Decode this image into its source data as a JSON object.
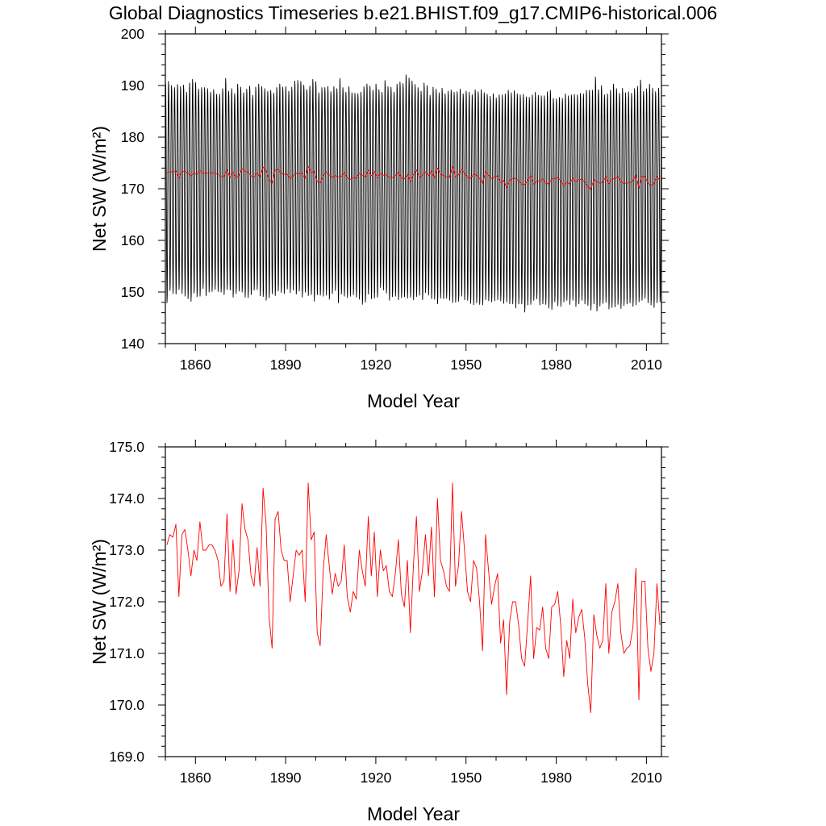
{
  "figure_title": "Global Diagnostics Timeseries b.e21.BHIST.f09_g17.CMIP6-historical.006",
  "chart_data": [
    {
      "type": "line",
      "xlabel": "Model Year",
      "ylabel": "Net SW (W/m²)",
      "xlim": [
        1850,
        2015
      ],
      "ylim": [
        140,
        200
      ],
      "xticks": [
        1860,
        1890,
        1920,
        1950,
        1980,
        2010
      ],
      "yticks": [
        140,
        150,
        160,
        170,
        180,
        190,
        200
      ],
      "ytick_labels": [
        "140",
        "150",
        "160",
        "170",
        "180",
        "190",
        "200"
      ],
      "grid": false,
      "series": [
        {
          "kind": "monthly",
          "color": "#000000",
          "x_start": 1850,
          "y_mean_source": "annual",
          "seasonal_amplitude": 20.5,
          "annual_max": [
            190.7,
            191.0,
            190.2,
            189.8,
            190.4,
            190.0,
            190.3,
            188.9,
            190.7,
            191.4,
            190.8,
            189.5,
            189.8,
            189.8,
            189.6,
            188.9,
            189.4,
            188.5,
            188.5,
            189.6,
            191.6,
            189.1,
            189.6,
            188.6,
            190.5,
            189.9,
            188.8,
            189.5,
            190.1,
            188.3,
            189.9,
            190.5,
            190.0,
            189.6,
            189.1,
            189.3,
            188.7,
            189.8,
            190.5,
            189.9,
            190.0,
            189.1,
            189.9,
            191.1,
            191.2,
            191.0,
            190.3,
            189.4,
            190.1,
            191.4,
            191.0,
            188.8,
            189.8,
            189.8,
            190.0,
            189.0,
            190.0,
            189.6,
            191.6,
            189.8,
            188.9,
            190.0,
            188.8,
            188.7,
            188.6,
            188.9,
            190.0,
            190.5,
            190.1,
            189.3,
            190.5,
            189.4,
            188.9,
            191.2,
            190.0,
            189.9,
            188.9,
            190.5,
            190.9,
            190.6,
            192.3,
            191.7,
            191.1,
            190.4,
            189.8,
            189.1,
            190.7,
            190.2,
            188.3,
            189.9,
            189.5,
            188.8,
            189.7,
            188.6,
            189.1,
            189.3,
            188.9,
            189.0,
            189.5,
            188.6,
            189.1,
            188.9,
            188.4,
            189.4,
            189.0,
            189.4,
            188.8,
            188.5,
            188.1,
            188.6,
            187.8,
            188.4,
            188.4,
            188.6,
            189.3,
            188.8,
            189.2,
            188.6,
            188.4,
            188.5,
            188.0,
            187.9,
            188.4,
            188.9,
            188.3,
            188.2,
            188.2,
            189.0,
            189.3,
            187.7,
            187.6,
            187.9,
            187.7,
            188.6,
            188.2,
            188.4,
            188.5,
            188.4,
            188.7,
            188.6,
            189.3,
            189.3,
            189.3,
            191.9,
            189.4,
            190.2,
            188.4,
            188.6,
            189.3,
            190.5,
            189.6,
            188.7,
            189.7,
            188.8,
            189.0,
            188.7,
            189.6,
            190.1,
            191.3,
            189.1,
            189.6,
            190.5,
            189.7,
            189.0,
            189.7,
            190.1
          ],
          "annual_min": [
            147.6,
            150.0,
            149.4,
            149.3,
            150.2,
            149.4,
            148.9,
            148.4,
            147.9,
            149.5,
            148.8,
            148.9,
            150.4,
            149.0,
            149.7,
            149.8,
            150.2,
            149.8,
            149.7,
            149.2,
            150.2,
            150.1,
            148.7,
            149.4,
            149.9,
            149.7,
            148.7,
            148.6,
            149.2,
            150.1,
            150.2,
            149.0,
            148.8,
            148.1,
            148.6,
            149.4,
            149.0,
            149.9,
            149.6,
            149.4,
            150.3,
            149.6,
            150.1,
            149.3,
            149.9,
            148.7,
            149.7,
            149.0,
            149.2,
            147.9,
            149.2,
            149.1,
            148.9,
            149.1,
            148.3,
            149.4,
            150.0,
            147.6,
            149.3,
            148.9,
            148.6,
            148.9,
            149.2,
            148.7,
            148.3,
            147.3,
            147.7,
            149.3,
            148.4,
            148.5,
            148.7,
            150.6,
            150.1,
            149.5,
            148.1,
            148.8,
            148.9,
            148.2,
            148.6,
            148.8,
            148.5,
            148.7,
            148.2,
            148.8,
            149.1,
            148.2,
            149.6,
            149.1,
            148.4,
            148.3,
            147.4,
            148.5,
            148.4,
            148.5,
            148.1,
            147.6,
            147.7,
            147.9,
            148.9,
            148.2,
            148.1,
            147.5,
            147.2,
            147.6,
            147.3,
            147.2,
            148.2,
            148.0,
            147.8,
            148.0,
            148.2,
            148.0,
            147.5,
            147.8,
            147.4,
            147.4,
            146.6,
            147.4,
            147.4,
            145.8,
            147.2,
            147.3,
            148.1,
            148.4,
            147.2,
            147.4,
            147.3,
            146.6,
            146.3,
            147.8,
            147.0,
            146.9,
            147.8,
            148.1,
            147.3,
            148.1,
            146.9,
            147.4,
            148.1,
            147.4,
            147.1,
            146.2,
            147.4,
            146.0,
            147.0,
            147.5,
            147.7,
            146.4,
            146.7,
            146.8,
            147.3,
            146.5,
            147.1,
            147.4,
            147.6,
            146.9,
            147.2,
            147.8,
            148.1,
            148.5,
            147.6,
            147.2,
            146.7,
            147.6,
            147.8
          ]
        },
        {
          "kind": "annual",
          "color": "#ff0000",
          "x_start": 1850,
          "y_source": "annual"
        }
      ]
    },
    {
      "type": "line",
      "xlabel": "Model Year",
      "ylabel": "Net SW (W/m²)",
      "xlim": [
        1850,
        2015
      ],
      "ylim": [
        169,
        175
      ],
      "xticks": [
        1860,
        1890,
        1920,
        1950,
        1980,
        2010
      ],
      "yticks": [
        169,
        170,
        171,
        172,
        173,
        174,
        175
      ],
      "ytick_labels": [
        "169.0",
        "170.0",
        "171.0",
        "172.0",
        "173.0",
        "174.0",
        "175.0"
      ],
      "grid": false,
      "series": [
        {
          "kind": "annual",
          "color": "#ff0000",
          "x_start": 1850,
          "y_source": "annual"
        }
      ]
    }
  ],
  "annual": [
    173.1,
    173.3,
    173.25,
    173.5,
    172.1,
    173.3,
    173.4,
    173.0,
    172.5,
    173.0,
    172.8,
    173.55,
    173.0,
    173.0,
    173.1,
    173.1,
    173.0,
    172.8,
    172.3,
    172.4,
    173.7,
    172.2,
    173.2,
    172.15,
    172.6,
    173.9,
    173.4,
    173.2,
    172.5,
    172.3,
    173.05,
    172.3,
    174.2,
    173.5,
    171.7,
    171.1,
    173.6,
    173.75,
    173.0,
    172.8,
    172.8,
    172.0,
    172.5,
    173.0,
    172.9,
    173.0,
    172.0,
    174.3,
    173.2,
    173.35,
    171.4,
    171.15,
    172.6,
    173.3,
    172.7,
    172.15,
    172.55,
    172.3,
    172.4,
    173.1,
    172.1,
    171.8,
    172.2,
    172.05,
    173.0,
    172.6,
    172.3,
    173.65,
    172.5,
    173.35,
    172.1,
    173.0,
    172.6,
    172.7,
    172.2,
    172.1,
    172.55,
    173.2,
    172.15,
    171.9,
    172.8,
    171.4,
    172.7,
    173.65,
    172.2,
    172.6,
    173.3,
    172.5,
    173.45,
    172.1,
    174.0,
    172.8,
    172.6,
    172.3,
    172.2,
    174.3,
    172.3,
    172.7,
    173.75,
    173.0,
    172.2,
    172.0,
    172.8,
    172.65,
    172.0,
    171.05,
    173.3,
    172.6,
    171.95,
    172.3,
    172.55,
    171.2,
    171.65,
    170.2,
    171.6,
    172.0,
    172.0,
    171.55,
    170.9,
    170.75,
    171.6,
    172.5,
    170.9,
    171.5,
    171.45,
    171.9,
    171.1,
    170.9,
    171.9,
    171.95,
    172.2,
    171.55,
    170.55,
    171.25,
    170.9,
    172.05,
    171.4,
    171.7,
    171.85,
    171.3,
    170.4,
    169.85,
    171.75,
    171.35,
    171.1,
    171.25,
    172.35,
    171.0,
    171.8,
    172.0,
    172.35,
    171.4,
    171.0,
    171.1,
    171.15,
    171.5,
    172.65,
    170.1,
    172.4,
    172.4,
    171.1,
    170.65,
    171.0,
    172.35,
    171.55
  ]
}
